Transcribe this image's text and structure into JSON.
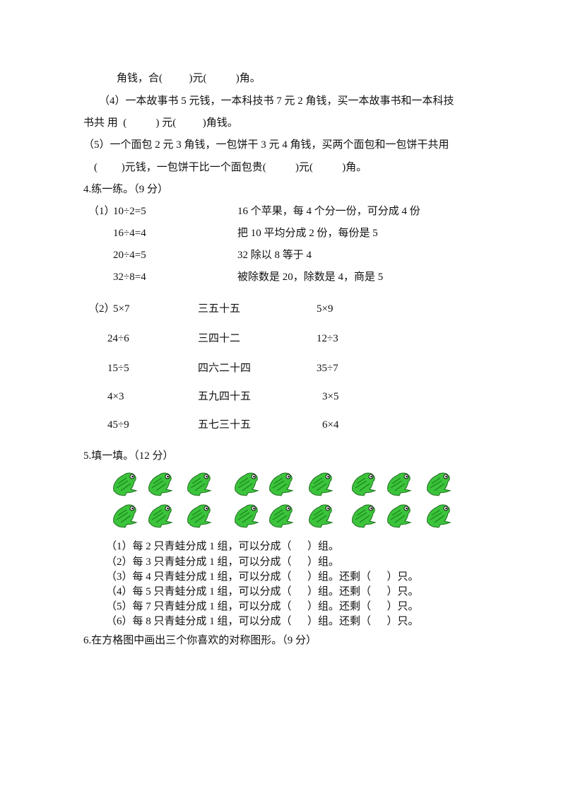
{
  "q3": {
    "line1": "角钱，合(          )元(           )角。",
    "item4_a": "（4）一本故事书 5 元钱，一本科技书 7 元 2 角钱，买一本故事书和一本科技",
    "item4_b": "书共 用  (           ) 元(          )角钱。",
    "item5_a": "（5）一个面包 2 元 3 角钱，一包饼干 3 元 4 角钱，买两个面包和一包饼干共用",
    "item5_b": "(         )元钱，一包饼干比一个面包贵(           )元(           )角。"
  },
  "q4": {
    "title": "4.练一练。（9 分）",
    "part1": {
      "label": "（1）",
      "left": [
        "10÷2=5",
        "16÷4=4",
        "20÷4=5",
        "32÷8=4"
      ],
      "right": [
        "16 个苹果，每 4 个分一份，可分成 4 份",
        "把 10 平均分成 2 份，每份是 5",
        "32 除以 8 等于 4",
        "被除数是 20，除数是 4，商是 5"
      ]
    },
    "part2": {
      "label": "（2）",
      "left": [
        "5×7",
        "24÷6",
        "15÷5",
        "4×3",
        "45÷9"
      ],
      "middle": [
        "三五十五",
        "三四十二",
        "四六二十四",
        "五九四十五",
        "五七三十五"
      ],
      "right": [
        "5×9",
        "12÷3",
        "35÷7",
        "3×5",
        "6×4"
      ]
    }
  },
  "q5": {
    "title": "5.填一填。（12 分）",
    "frog_count": 18,
    "frog_color": "#3cc43c",
    "items": [
      "（1）每 2 只青蛙分成 1 组，可以分成（      ）组。",
      "（2）每 3 只青蛙分成 1 组，可以分成（      ）组。",
      "（3）每 4 只青蛙分成 1 组，可以分成（      ）组。还剩（      ）只。",
      "（4）每 5 只青蛙分成 1 组，可以分成（      ）组。还剩（      ）只。",
      "（5）每 7 只青蛙分成 1 组，可以分成（      ）组。还剩（      ）只。",
      "（6）每 8 只青蛙分成 1 组，可以分成（      ）组。还剩（      ）只。"
    ]
  },
  "q6": {
    "title": "6.在方格图中画出三个你喜欢的对称图形。（9 分）"
  }
}
